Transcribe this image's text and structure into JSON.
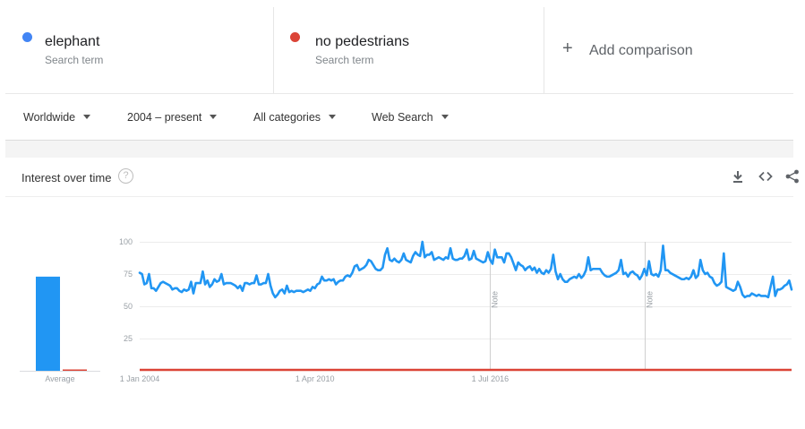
{
  "terms": [
    {
      "name": "elephant",
      "sub": "Search term",
      "color": "#4285f4"
    },
    {
      "name": "no pedestrians",
      "sub": "Search term",
      "color": "#db4437"
    }
  ],
  "add_comparison": {
    "icon": "plus-icon",
    "label": "Add comparison"
  },
  "filters": {
    "region": "Worldwide",
    "time": "2004 – present",
    "category": "All categories",
    "property": "Web Search"
  },
  "card": {
    "title": "Interest over time",
    "help_icon": "?",
    "tools": [
      "download-icon",
      "embed-icon",
      "share-icon"
    ]
  },
  "chart_data": {
    "type": "line",
    "average_label": "Average",
    "averages": [
      {
        "name": "elephant",
        "value": 73
      },
      {
        "name": "no pedestrians",
        "value": 0
      }
    ],
    "y_ticks": [
      "100",
      "75",
      "50",
      "25"
    ],
    "ylim": [
      0,
      100
    ],
    "x_ticks": [
      {
        "label": "1 Jan 2004",
        "x": "2004-01"
      },
      {
        "label": "1 Apr 2010",
        "x": "2010-04"
      },
      {
        "label": "1 Jul 2016",
        "x": "2016-07"
      }
    ],
    "notes": [
      {
        "label": "Note",
        "x": "2016-07"
      },
      {
        "label": "Note",
        "x": "2022-01"
      }
    ],
    "series": [
      {
        "name": "elephant",
        "color": "#2196f3",
        "start": "2004-01",
        "values": [
          76,
          75,
          67,
          68,
          75,
          64,
          64,
          62,
          65,
          68,
          69,
          68,
          67,
          66,
          63,
          64,
          64,
          62,
          61,
          63,
          62,
          63,
          69,
          60,
          68,
          68,
          68,
          77,
          67,
          70,
          65,
          67,
          71,
          69,
          70,
          75,
          67,
          68,
          68,
          68,
          67,
          66,
          64,
          66,
          62,
          68,
          68,
          67,
          68,
          68,
          74,
          67,
          67,
          68,
          68,
          75,
          66,
          60,
          57,
          59,
          62,
          63,
          60,
          66,
          61,
          62,
          61,
          62,
          62,
          62,
          61,
          62,
          63,
          62,
          65,
          64,
          67,
          68,
          73,
          70,
          70,
          71,
          70,
          71,
          67,
          69,
          70,
          70,
          73,
          74,
          73,
          76,
          81,
          82,
          78,
          79,
          80,
          82,
          86,
          85,
          82,
          79,
          78,
          78,
          80,
          90,
          95,
          86,
          85,
          87,
          85,
          84,
          86,
          91,
          86,
          85,
          84,
          89,
          92,
          90,
          89,
          100,
          88,
          90,
          90,
          92,
          86,
          87,
          88,
          87,
          86,
          88,
          87,
          95,
          87,
          86,
          86,
          87,
          87,
          89,
          94,
          86,
          87,
          93,
          87,
          86,
          85,
          84,
          85,
          92,
          86,
          83,
          94,
          88,
          88,
          88,
          84,
          91,
          91,
          88,
          83,
          78,
          84,
          82,
          81,
          78,
          80,
          81,
          78,
          80,
          76,
          79,
          76,
          75,
          78,
          76,
          79,
          90,
          77,
          71,
          75,
          71,
          69,
          69,
          71,
          72,
          73,
          72,
          75,
          72,
          74,
          78,
          88,
          78,
          79,
          79,
          79,
          79,
          76,
          74,
          73,
          73,
          74,
          75,
          76,
          78,
          86,
          75,
          76,
          73,
          76,
          77,
          75,
          74,
          71,
          74,
          79,
          74,
          85,
          75,
          74,
          75,
          73,
          78,
          97,
          78,
          78,
          76,
          75,
          74,
          73,
          72,
          71,
          71,
          72,
          71,
          73,
          78,
          72,
          74,
          86,
          78,
          75,
          76,
          73,
          72,
          68,
          66,
          67,
          69,
          91,
          65,
          64,
          63,
          62,
          63,
          69,
          65,
          59,
          57,
          58,
          58,
          60,
          59,
          58,
          59,
          58,
          58,
          58,
          57,
          65,
          73,
          58,
          63,
          63,
          64,
          66,
          67,
          70,
          63
        ]
      },
      {
        "name": "no pedestrians",
        "color": "#db4437",
        "constant": 0
      }
    ]
  }
}
